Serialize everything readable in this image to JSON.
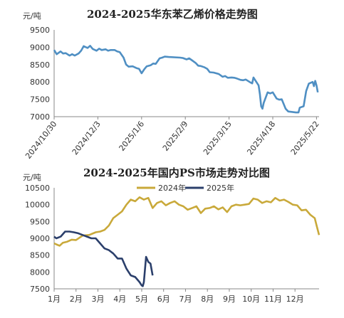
{
  "chart_data": [
    {
      "type": "line",
      "title": "2024-2025华东苯乙烯价格走势图",
      "ylabel": "元/吨",
      "ylim": [
        7000,
        9500
      ],
      "yticks": [
        7000,
        7500,
        8000,
        8500,
        9000,
        9500
      ],
      "xlim": [
        "2024-10-30",
        "2025-05-24"
      ],
      "xticks": [
        "2024/10/30",
        "2024/12/3",
        "2025/1/6",
        "2025/2/9",
        "2025/3/15",
        "2025/4/18",
        "2025/5/22"
      ],
      "grid": false,
      "color": "#4f8fc3",
      "series": [
        {
          "x": [
            "2024-10-30",
            "2024-11-01",
            "2024-11-04",
            "2024-11-06",
            "2024-11-08",
            "2024-11-11",
            "2024-11-13",
            "2024-11-15",
            "2024-11-18",
            "2024-11-20",
            "2024-11-22",
            "2024-11-25",
            "2024-11-27",
            "2024-11-29",
            "2024-12-02",
            "2024-12-04",
            "2024-12-06",
            "2024-12-09",
            "2024-12-11",
            "2024-12-13",
            "2024-12-16",
            "2024-12-18",
            "2024-12-20",
            "2024-12-23",
            "2024-12-25",
            "2024-12-27",
            "2024-12-30",
            "2025-01-02",
            "2025-01-04",
            "2025-01-06",
            "2025-01-08",
            "2025-01-10",
            "2025-01-13",
            "2025-01-15",
            "2025-01-17",
            "2025-01-20",
            "2025-01-22",
            "2025-01-24",
            "2025-01-27",
            "2025-02-05",
            "2025-02-07",
            "2025-02-10",
            "2025-02-12",
            "2025-02-14",
            "2025-02-17",
            "2025-02-19",
            "2025-02-21",
            "2025-02-24",
            "2025-02-26",
            "2025-02-28",
            "2025-03-03",
            "2025-03-05",
            "2025-03-07",
            "2025-03-10",
            "2025-03-12",
            "2025-03-14",
            "2025-03-17",
            "2025-03-19",
            "2025-03-21",
            "2025-03-24",
            "2025-03-26",
            "2025-03-28",
            "2025-03-31",
            "2025-04-02",
            "2025-04-03",
            "2025-04-07",
            "2025-04-08",
            "2025-04-09",
            "2025-04-10",
            "2025-04-11",
            "2025-04-14",
            "2025-04-16",
            "2025-04-18",
            "2025-04-21",
            "2025-04-23",
            "2025-04-25",
            "2025-04-28",
            "2025-04-30",
            "2025-05-06",
            "2025-05-08",
            "2025-05-09",
            "2025-05-12",
            "2025-05-14",
            "2025-05-16",
            "2025-05-19",
            "2025-05-20",
            "2025-05-21",
            "2025-05-22",
            "2025-05-23"
          ],
          "values": [
            8920,
            8800,
            8880,
            8820,
            8830,
            8760,
            8800,
            8760,
            8820,
            8900,
            9030,
            8980,
            9040,
            8950,
            8900,
            8960,
            8920,
            8940,
            8900,
            8920,
            8920,
            8880,
            8860,
            8700,
            8500,
            8440,
            8450,
            8400,
            8380,
            8250,
            8360,
            8450,
            8480,
            8530,
            8520,
            8680,
            8700,
            8730,
            8720,
            8700,
            8690,
            8650,
            8680,
            8630,
            8550,
            8470,
            8460,
            8420,
            8380,
            8280,
            8270,
            8250,
            8230,
            8150,
            8170,
            8120,
            8130,
            8120,
            8100,
            8060,
            8050,
            8070,
            8000,
            7960,
            8130,
            7900,
            7650,
            7300,
            7230,
            7400,
            7700,
            7670,
            7700,
            7520,
            7490,
            7500,
            7230,
            7150,
            7120,
            7120,
            7260,
            7300,
            7740,
            7950,
            8000,
            7880,
            8030,
            7900,
            7700
          ]
        }
      ]
    },
    {
      "type": "line",
      "title": "2024-2025年国内PS市场走势对比图",
      "ylabel": "元/吨",
      "ylim": [
        7500,
        10500
      ],
      "yticks": [
        7500,
        8000,
        8500,
        9000,
        9500,
        10000,
        10500
      ],
      "categories": [
        "1月",
        "2月",
        "3月",
        "4月",
        "5月",
        "6月",
        "7月",
        "8月",
        "9月",
        "10月",
        "11月",
        "12月"
      ],
      "xlim_months": [
        1,
        13.1
      ],
      "grid": false,
      "legend": "top-center",
      "series": [
        {
          "name": "2024年",
          "color": "#c9a93a",
          "x": [
            1.0,
            1.1,
            1.25,
            1.4,
            1.6,
            1.8,
            2.0,
            2.3,
            2.6,
            2.9,
            3.1,
            3.3,
            3.5,
            3.7,
            3.9,
            4.1,
            4.3,
            4.5,
            4.7,
            4.9,
            5.1,
            5.3,
            5.5,
            5.7,
            5.9,
            6.1,
            6.3,
            6.5,
            6.7,
            6.9,
            7.1,
            7.3,
            7.5,
            7.7,
            7.9,
            8.1,
            8.3,
            8.5,
            8.7,
            8.9,
            9.1,
            9.3,
            9.5,
            9.7,
            9.9,
            10.1,
            10.3,
            10.5,
            10.7,
            10.9,
            11.1,
            11.3,
            11.5,
            11.7,
            11.9,
            12.1,
            12.3,
            12.5,
            12.7,
            12.9,
            13.0,
            13.1
          ],
          "values": [
            8850,
            8820,
            8780,
            8870,
            8900,
            8960,
            8950,
            9080,
            9100,
            9180,
            9200,
            9250,
            9380,
            9600,
            9700,
            9800,
            10000,
            10150,
            10100,
            10220,
            10150,
            10200,
            9900,
            10050,
            10100,
            9980,
            10050,
            10100,
            10000,
            9950,
            9850,
            9900,
            9950,
            9750,
            9880,
            9900,
            9950,
            9860,
            9920,
            9780,
            9950,
            10000,
            9980,
            10000,
            10020,
            10180,
            10150,
            10050,
            10100,
            10070,
            10200,
            10120,
            10150,
            10080,
            10000,
            9980,
            9830,
            9850,
            9700,
            9600,
            9350,
            9100
          ]
        },
        {
          "name": "2025年",
          "color": "#2b3f6b",
          "x": [
            1.0,
            1.1,
            1.3,
            1.5,
            1.7,
            1.9,
            2.1,
            2.3,
            2.5,
            2.7,
            2.9,
            3.1,
            3.3,
            3.5,
            3.7,
            3.9,
            4.1,
            4.3,
            4.5,
            4.7,
            4.9,
            5.0,
            5.05,
            5.1,
            5.2,
            5.3,
            5.4,
            5.5
          ],
          "values": [
            9050,
            9000,
            9050,
            9200,
            9200,
            9180,
            9150,
            9100,
            9050,
            9000,
            9000,
            8850,
            8700,
            8650,
            8550,
            8400,
            8400,
            8100,
            7900,
            7850,
            7700,
            7600,
            7580,
            7700,
            8450,
            8300,
            8250,
            7900
          ]
        }
      ]
    }
  ]
}
